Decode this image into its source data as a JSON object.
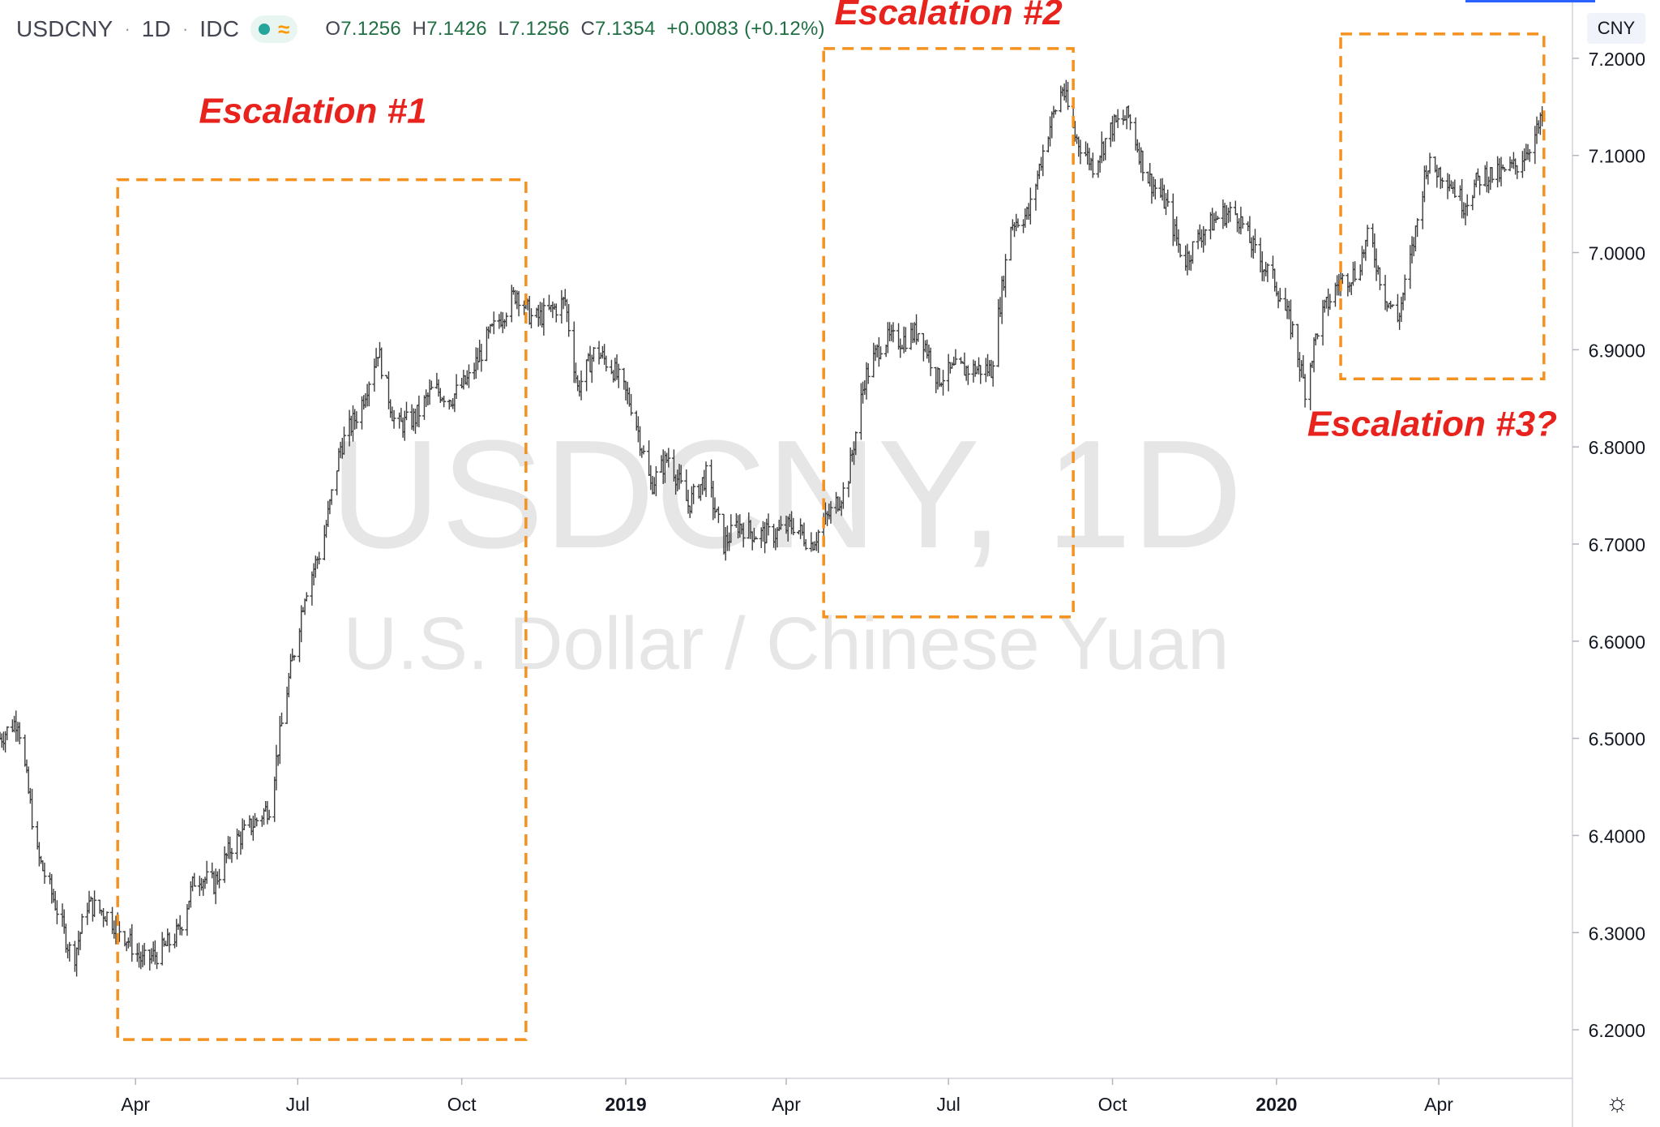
{
  "header": {
    "symbol": "USDCNY",
    "interval": "1D",
    "exchange": "IDC",
    "open_label": "O",
    "open": "7.1256",
    "high_label": "H",
    "high": "7.1426",
    "low_label": "L",
    "low": "7.1256",
    "close_label": "C",
    "close": "7.1354",
    "change": "+0.0083 (+0.12%)",
    "currency": "CNY"
  },
  "watermark": {
    "line1": "USDCNY, 1D",
    "line2": "U.S. Dollar / Chinese Yuan"
  },
  "colors": {
    "up": "#26a69a",
    "down": "#ef5350",
    "bar": "#3c3c3c",
    "box": "#f5911e",
    "annotation": "#e8221c"
  },
  "chart_data": {
    "type": "candlestick",
    "x_range": [
      "2018-01-15",
      "2020-06-15"
    ],
    "ylim": [
      6.15,
      7.26
    ],
    "y_ticks": [
      "6.2000",
      "6.3000",
      "6.4000",
      "6.5000",
      "6.6000",
      "6.7000",
      "6.8000",
      "6.9000",
      "7.0000",
      "7.1000",
      "7.2000"
    ],
    "x_ticks": [
      {
        "label": "Apr",
        "date": "2018-04-01",
        "bold": false
      },
      {
        "label": "Jul",
        "date": "2018-07-01",
        "bold": false
      },
      {
        "label": "Oct",
        "date": "2018-10-01",
        "bold": false
      },
      {
        "label": "2019",
        "date": "2019-01-01",
        "bold": true
      },
      {
        "label": "Apr",
        "date": "2019-04-01",
        "bold": false
      },
      {
        "label": "Jul",
        "date": "2019-07-01",
        "bold": false
      },
      {
        "label": "Oct",
        "date": "2019-10-01",
        "bold": false
      },
      {
        "label": "2020",
        "date": "2020-01-01",
        "bold": true
      },
      {
        "label": "Apr",
        "date": "2020-04-01",
        "bold": false
      }
    ],
    "price_path": [
      [
        "2018-01-15",
        6.5
      ],
      [
        "2018-01-25",
        6.52
      ],
      [
        "2018-02-05",
        6.38
      ],
      [
        "2018-02-15",
        6.33
      ],
      [
        "2018-02-25",
        6.27
      ],
      [
        "2018-03-05",
        6.33
      ],
      [
        "2018-03-15",
        6.32
      ],
      [
        "2018-03-25",
        6.3
      ],
      [
        "2018-04-05",
        6.27
      ],
      [
        "2018-04-15",
        6.28
      ],
      [
        "2018-04-25",
        6.3
      ],
      [
        "2018-05-05",
        6.36
      ],
      [
        "2018-05-15",
        6.35
      ],
      [
        "2018-05-25",
        6.39
      ],
      [
        "2018-06-05",
        6.41
      ],
      [
        "2018-06-15",
        6.43
      ],
      [
        "2018-06-25",
        6.55
      ],
      [
        "2018-07-05",
        6.65
      ],
      [
        "2018-07-15",
        6.7
      ],
      [
        "2018-07-25",
        6.8
      ],
      [
        "2018-08-05",
        6.84
      ],
      [
        "2018-08-15",
        6.9
      ],
      [
        "2018-08-25",
        6.82
      ],
      [
        "2018-09-05",
        6.83
      ],
      [
        "2018-09-15",
        6.86
      ],
      [
        "2018-09-25",
        6.85
      ],
      [
        "2018-10-05",
        6.87
      ],
      [
        "2018-10-15",
        6.91
      ],
      [
        "2018-10-25",
        6.94
      ],
      [
        "2018-11-01",
        6.96
      ],
      [
        "2018-11-10",
        6.93
      ],
      [
        "2018-11-20",
        6.94
      ],
      [
        "2018-11-28",
        6.95
      ],
      [
        "2018-12-05",
        6.86
      ],
      [
        "2018-12-15",
        6.9
      ],
      [
        "2018-12-25",
        6.88
      ],
      [
        "2019-01-05",
        6.84
      ],
      [
        "2019-01-15",
        6.76
      ],
      [
        "2019-01-25",
        6.79
      ],
      [
        "2019-02-05",
        6.74
      ],
      [
        "2019-02-15",
        6.77
      ],
      [
        "2019-02-25",
        6.7
      ],
      [
        "2019-03-05",
        6.72
      ],
      [
        "2019-03-15",
        6.71
      ],
      [
        "2019-03-25",
        6.71
      ],
      [
        "2019-04-05",
        6.72
      ],
      [
        "2019-04-15",
        6.7
      ],
      [
        "2019-04-25",
        6.73
      ],
      [
        "2019-05-05",
        6.76
      ],
      [
        "2019-05-15",
        6.87
      ],
      [
        "2019-05-25",
        6.91
      ],
      [
        "2019-06-05",
        6.91
      ],
      [
        "2019-06-15",
        6.92
      ],
      [
        "2019-06-25",
        6.87
      ],
      [
        "2019-07-05",
        6.88
      ],
      [
        "2019-07-15",
        6.88
      ],
      [
        "2019-07-25",
        6.88
      ],
      [
        "2019-08-05",
        7.03
      ],
      [
        "2019-08-15",
        7.04
      ],
      [
        "2019-08-25",
        7.12
      ],
      [
        "2019-09-03",
        7.17
      ],
      [
        "2019-09-10",
        7.12
      ],
      [
        "2019-09-20",
        7.09
      ],
      [
        "2019-10-01",
        7.13
      ],
      [
        "2019-10-10",
        7.14
      ],
      [
        "2019-10-20",
        7.08
      ],
      [
        "2019-10-31",
        7.05
      ],
      [
        "2019-11-10",
        6.99
      ],
      [
        "2019-11-20",
        7.02
      ],
      [
        "2019-12-01",
        7.04
      ],
      [
        "2019-12-10",
        7.04
      ],
      [
        "2019-12-20",
        7.0
      ],
      [
        "2019-12-31",
        6.97
      ],
      [
        "2020-01-10",
        6.92
      ],
      [
        "2020-01-17",
        6.86
      ],
      [
        "2020-01-25",
        6.93
      ],
      [
        "2020-02-05",
        6.97
      ],
      [
        "2020-02-15",
        6.98
      ],
      [
        "2020-02-22",
        7.02
      ],
      [
        "2020-03-01",
        6.96
      ],
      [
        "2020-03-09",
        6.93
      ],
      [
        "2020-03-18",
        7.01
      ],
      [
        "2020-03-25",
        7.09
      ],
      [
        "2020-04-05",
        7.08
      ],
      [
        "2020-04-15",
        7.05
      ],
      [
        "2020-04-25",
        7.08
      ],
      [
        "2020-05-05",
        7.08
      ],
      [
        "2020-05-15",
        7.09
      ],
      [
        "2020-05-25",
        7.12
      ],
      [
        "2020-05-29",
        7.1354
      ]
    ]
  },
  "annotations": [
    {
      "label": "Escalation #1",
      "from": "2018-03-22",
      "to": "2018-11-06",
      "low": 6.19,
      "high": 7.075
    },
    {
      "label": "Escalation #2",
      "from": "2019-04-22",
      "to": "2019-09-09",
      "low": 6.625,
      "high": 7.21
    },
    {
      "label": "Escalation #3?",
      "from": "2020-02-06",
      "to": "2020-05-30",
      "low": 6.87,
      "high": 7.225
    }
  ]
}
